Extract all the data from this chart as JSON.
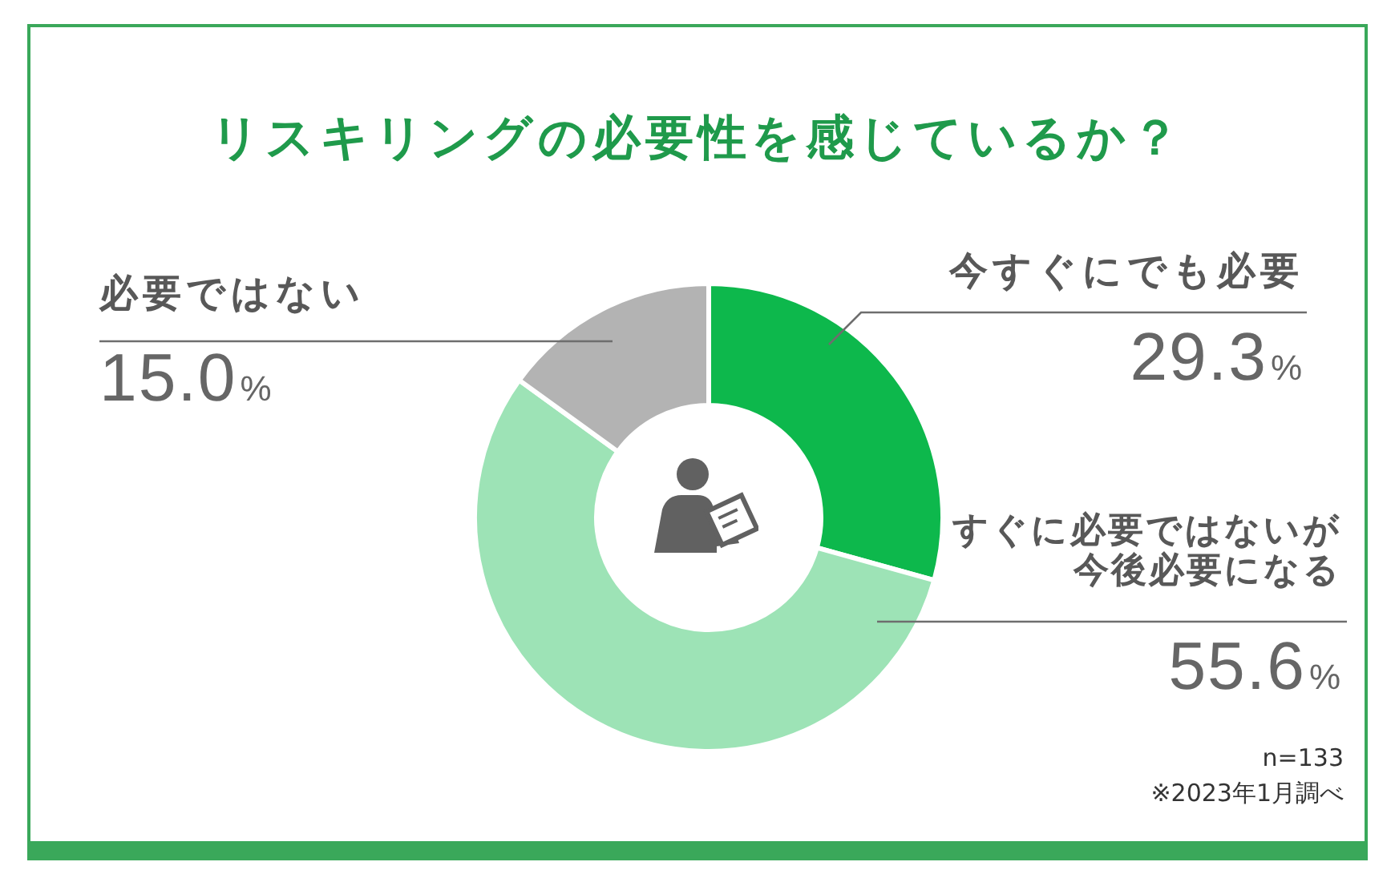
{
  "chart_data": {
    "type": "donut",
    "title": "リスキリングの必要性を感じているか？",
    "categories": [
      "今すぐにでも必要",
      "すぐに必要ではないが今後必要になる",
      "必要ではない"
    ],
    "values": [
      29.3,
      55.6,
      15.0
    ],
    "colors": [
      "#0db84c",
      "#9de3b6",
      "#b3b3b3"
    ],
    "value_labels": [
      "29.3%",
      "55.6%",
      "15.0%"
    ],
    "annotations": [
      "n=133",
      "※2023年1月調べ"
    ]
  }
}
